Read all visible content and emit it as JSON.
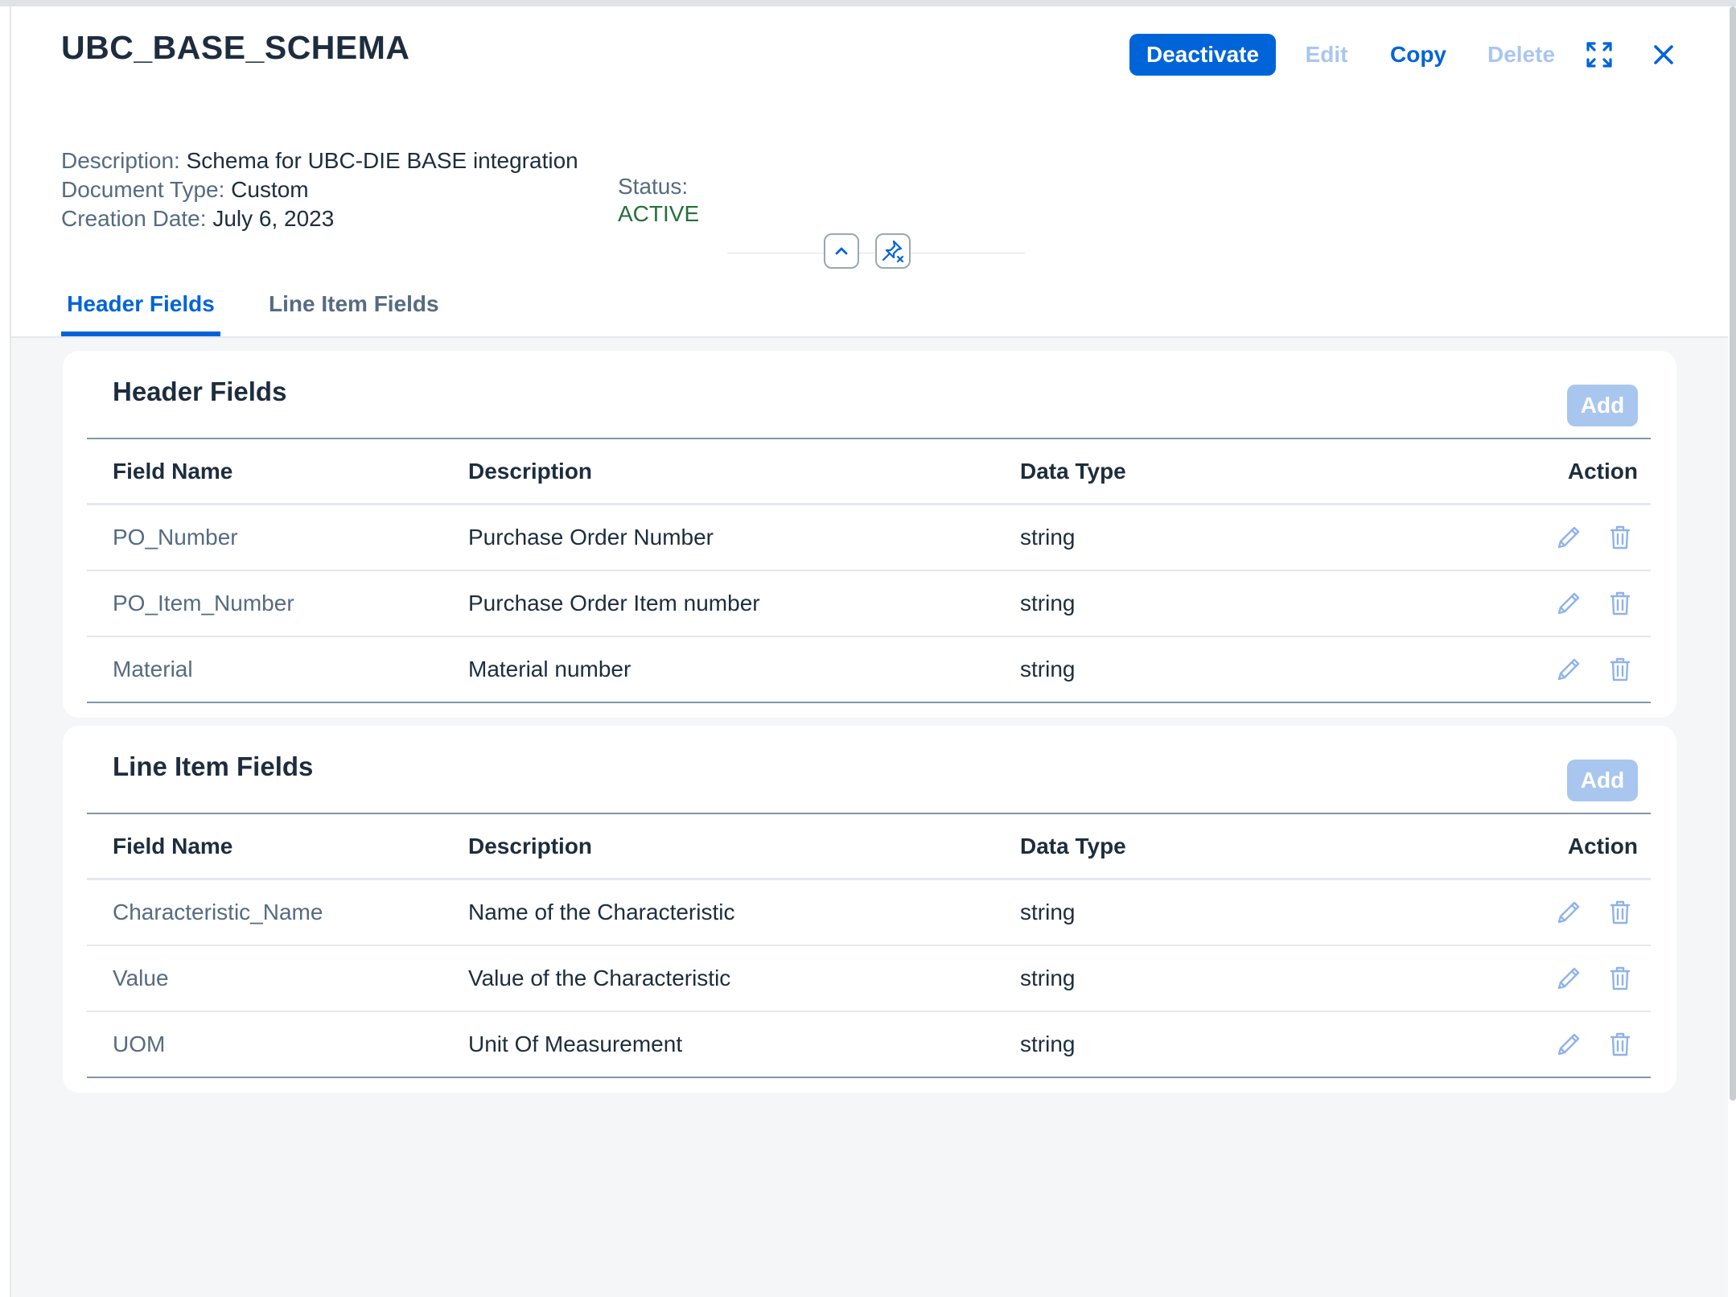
{
  "header": {
    "title": "UBC_BASE_SCHEMA",
    "actions": {
      "deactivate": "Deactivate",
      "edit": "Edit",
      "copy": "Copy",
      "delete": "Delete"
    },
    "icons": {
      "expand": "expand-icon",
      "close": "close-icon",
      "collapse": "chevron-up-icon",
      "pin": "pin-icon"
    },
    "info": {
      "description_label": "Description:",
      "description_value": "Schema for UBC-DIE BASE integration",
      "doc_type_label": "Document Type:",
      "doc_type_value": "Custom",
      "creation_date_label": "Creation Date:",
      "creation_date_value": "July 6, 2023",
      "status_label": "Status:",
      "status_value": "ACTIVE"
    }
  },
  "tabs": [
    {
      "label": "Header Fields",
      "selected": true
    },
    {
      "label": "Line Item Fields",
      "selected": false
    }
  ],
  "sections": [
    {
      "title": "Header Fields",
      "add_label": "Add",
      "columns": [
        "Field Name",
        "Description",
        "Data Type",
        "Action"
      ],
      "rows": [
        {
          "field": "PO_Number",
          "description": "Purchase Order Number",
          "type": "string"
        },
        {
          "field": "PO_Item_Number",
          "description": "Purchase Order Item number",
          "type": "string"
        },
        {
          "field": "Material",
          "description": "Material number",
          "type": "string"
        }
      ]
    },
    {
      "title": "Line Item Fields",
      "add_label": "Add",
      "columns": [
        "Field Name",
        "Description",
        "Data Type",
        "Action"
      ],
      "rows": [
        {
          "field": "Characteristic_Name",
          "description": "Name of the Characteristic",
          "type": "string"
        },
        {
          "field": "Value",
          "description": "Value of the Characteristic",
          "type": "string"
        },
        {
          "field": "UOM",
          "description": "Unit Of Measurement",
          "type": "string"
        }
      ]
    }
  ],
  "colors": {
    "accent": "#0064d9",
    "accent_disabled": "#a9c6ef",
    "status_active": "#256f3a",
    "background": "#f5f6f7"
  }
}
